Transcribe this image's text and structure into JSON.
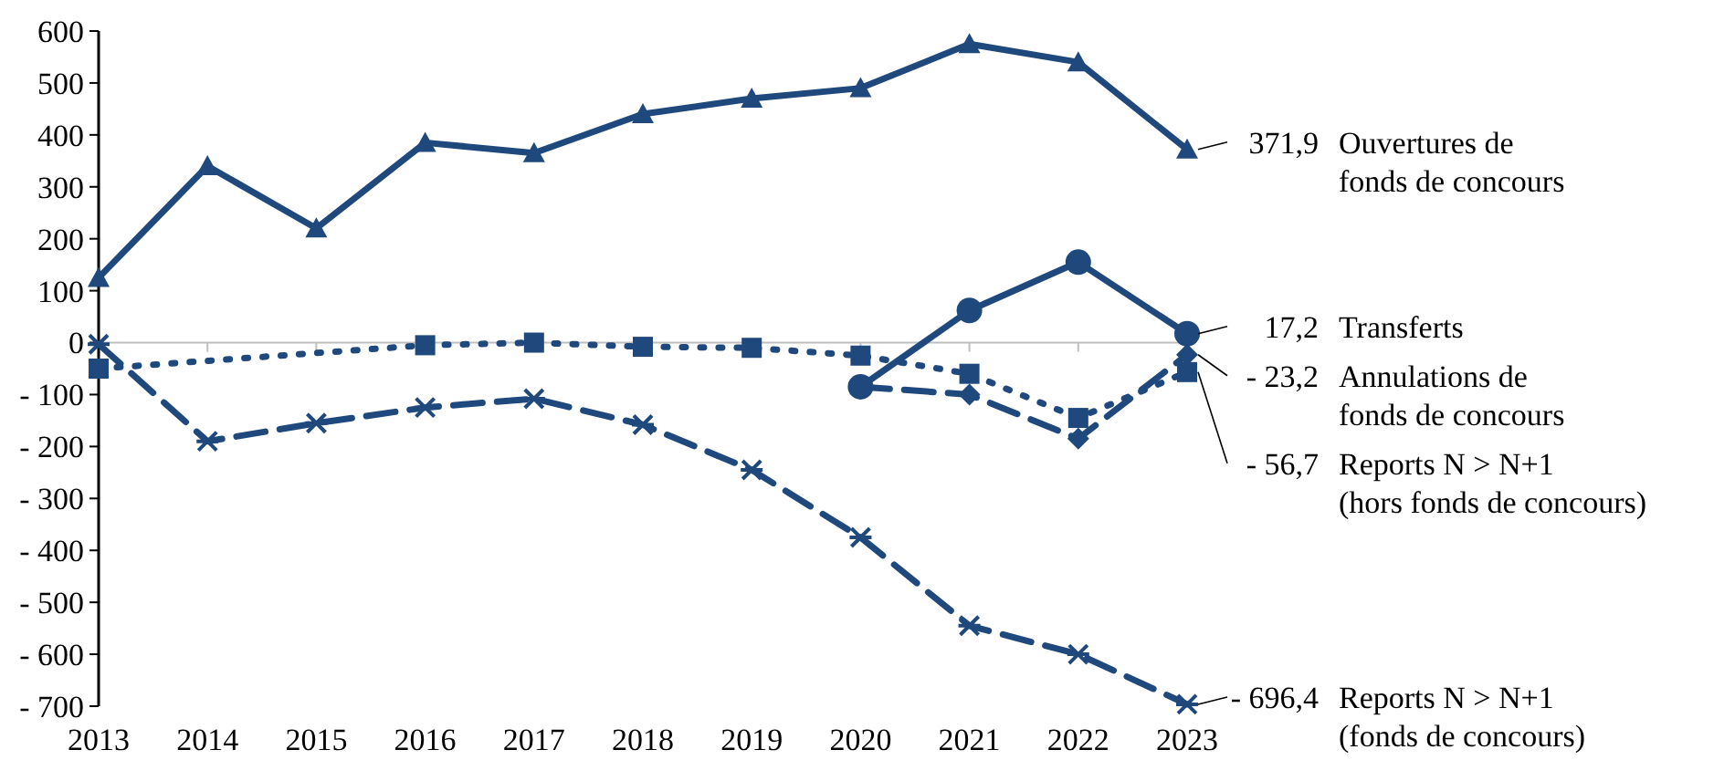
{
  "chart_data": {
    "type": "line",
    "categories": [
      "2013",
      "2014",
      "2015",
      "2016",
      "2017",
      "2018",
      "2019",
      "2020",
      "2021",
      "2022",
      "2023"
    ],
    "ylim": [
      -700,
      600
    ],
    "yticks": [
      600,
      500,
      400,
      300,
      200,
      100,
      0,
      {
        "value": -100,
        "label": "- 100"
      },
      {
        "value": -200,
        "label": "- 200"
      },
      {
        "value": -300,
        "label": "- 300"
      },
      {
        "value": -400,
        "label": "- 400"
      },
      {
        "value": -500,
        "label": "- 500"
      },
      {
        "value": -600,
        "label": "- 600"
      },
      {
        "value": -700,
        "label": "- 700"
      }
    ],
    "legend": "right",
    "series": [
      {
        "name": "Ouvertures de\nfonds de concours",
        "color": "#1f497d",
        "marker": "triangle",
        "line_style": "solid",
        "values": [
          125,
          340,
          220,
          385,
          365,
          440,
          470,
          490,
          575,
          540,
          371.9
        ],
        "value_labels": [
          null,
          null,
          null,
          null,
          null,
          null,
          null,
          null,
          null,
          null,
          "371,9"
        ]
      },
      {
        "name": "Transferts",
        "color": "#1f497d",
        "marker": "circle",
        "line_style": "solid",
        "values": [
          null,
          null,
          null,
          null,
          null,
          null,
          null,
          -85,
          62,
          155,
          17.2
        ],
        "value_labels": [
          null,
          null,
          null,
          null,
          null,
          null,
          null,
          null,
          null,
          null,
          "17,2"
        ]
      },
      {
        "name": "Annulations de\nfonds de concours",
        "color": "#1f497d",
        "marker": "diamond",
        "line_style": "dashed",
        "values": [
          null,
          null,
          null,
          null,
          null,
          null,
          null,
          -85,
          -100,
          -185,
          -23.2
        ],
        "value_labels": [
          null,
          null,
          null,
          null,
          null,
          null,
          null,
          null,
          null,
          null,
          "- 23,2"
        ]
      },
      {
        "name": "Reports N > N+1\n(hors fonds de concours)",
        "color": "#1f497d",
        "marker": "square",
        "line_style": "dotted",
        "values": [
          -50,
          null,
          null,
          -5,
          0,
          -8,
          -10,
          -25,
          -60,
          -145,
          -56.7
        ],
        "value_labels": [
          null,
          null,
          null,
          null,
          null,
          null,
          null,
          null,
          null,
          null,
          "- 56,7"
        ]
      },
      {
        "name": "Reports N > N+1\n(fonds de concours)",
        "color": "#1f497d",
        "marker": "cross",
        "line_style": "dashed",
        "values": [
          -3,
          -190,
          -155,
          -125,
          -108,
          -158,
          -245,
          -375,
          -545,
          -600,
          -696.4
        ],
        "value_labels": [
          null,
          null,
          null,
          null,
          null,
          null,
          null,
          null,
          null,
          null,
          "- 696,4"
        ]
      }
    ]
  }
}
